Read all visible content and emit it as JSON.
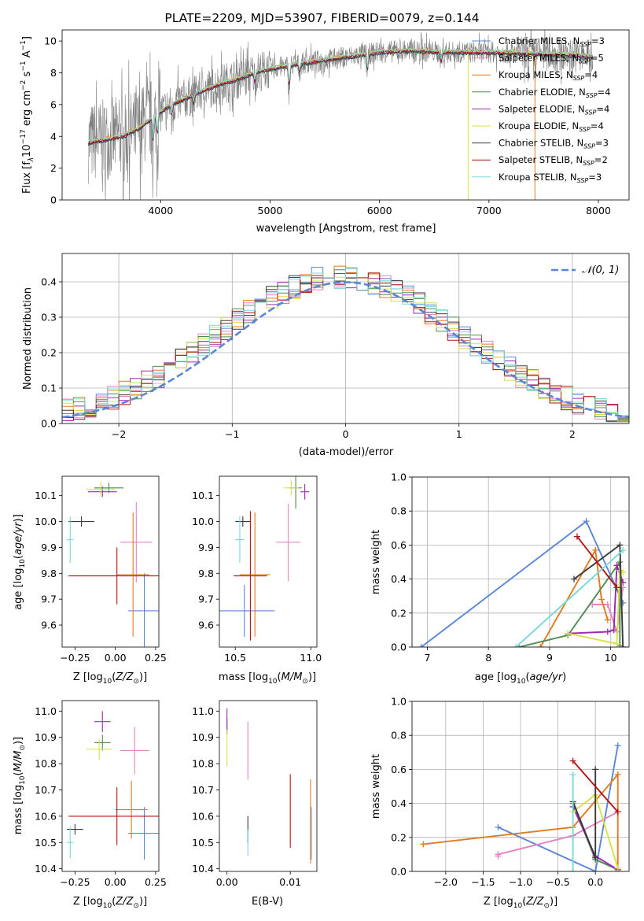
{
  "colors": {
    "Chabrier MILES": "#5b86d6",
    "Salpeter MILES": "#e584c3",
    "Kroupa MILES": "#e07b20",
    "Chabrier ELODIE": "#4f8a4f",
    "Salpeter ELODIE": "#9b2ab0",
    "Kroupa ELODIE": "#d8e04a",
    "Chabrier STELIB": "#3a3a3a",
    "Salpeter STELIB": "#b31515",
    "Kroupa STELIB": "#78d8d8",
    "data": "#808080",
    "normal": "#5b86d6"
  },
  "chart_data": [
    {
      "id": "spectrum",
      "type": "line",
      "title": "PLATE=2209, MJD=53907, FIBERID=0079, z=0.144",
      "xlabel": "wavelength [Angstrom, rest frame]",
      "ylabel": "Flux [f",
      "xlim": [
        3100,
        8280
      ],
      "ylim": [
        0,
        10.7
      ],
      "xticks": [
        "4000",
        "5000",
        "6000",
        "7000",
        "8000"
      ],
      "yticks": [
        "0",
        "2",
        "4",
        "6",
        "8",
        "10"
      ],
      "legend": [
        {
          "name": "Chabrier MILES",
          "nssp": "3"
        },
        {
          "name": "Salpeter MILES",
          "nssp": "5"
        },
        {
          "name": "Kroupa MILES",
          "nssp": "4"
        },
        {
          "name": "Chabrier ELODIE",
          "nssp": "4"
        },
        {
          "name": "Salpeter ELODIE",
          "nssp": "4"
        },
        {
          "name": "Kroupa ELODIE",
          "nssp": "4"
        },
        {
          "name": "Chabrier STELIB",
          "nssp": "3"
        },
        {
          "name": "Salpeter STELIB",
          "nssp": "2"
        },
        {
          "name": "Kroupa STELIB",
          "nssp": "3"
        }
      ],
      "legend_loc": "upper right",
      "continuum": [
        [
          3340,
          3.6
        ],
        [
          3500,
          3.8
        ],
        [
          3650,
          4.0
        ],
        [
          3800,
          4.5
        ],
        [
          3950,
          5.3
        ],
        [
          4100,
          6.0
        ],
        [
          4300,
          6.6
        ],
        [
          4500,
          7.2
        ],
        [
          4700,
          7.6
        ],
        [
          4900,
          8.1
        ],
        [
          5200,
          8.5
        ],
        [
          5500,
          8.8
        ],
        [
          5800,
          9.1
        ],
        [
          6000,
          9.3
        ],
        [
          6300,
          9.4
        ],
        [
          6600,
          9.3
        ],
        [
          7000,
          9.3
        ],
        [
          7400,
          9.2
        ],
        [
          7800,
          9.1
        ],
        [
          7950,
          9.0
        ]
      ]
    },
    {
      "id": "residual-hist",
      "type": "line",
      "xlabel": "(data-model)/error",
      "ylabel": "Normed distribution",
      "xlim": [
        -2.5,
        2.5
      ],
      "ylim": [
        0,
        0.48
      ],
      "grid": true,
      "xticks": [
        "−2",
        "−1",
        "0",
        "1",
        "2"
      ],
      "yticks": [
        "0.0",
        "0.1",
        "0.2",
        "0.3",
        "0.4"
      ],
      "legend": "𝒩(0, 1)",
      "legend_loc": "upper right",
      "bin_width": 0.1
    },
    {
      "id": "age-vs-z",
      "type": "scatter",
      "xlabel": "Z [log",
      "ylabel": "age  [log",
      "xlim": [
        -0.33,
        0.27
      ],
      "ylim": [
        9.515,
        10.175
      ],
      "xticks": [
        "−0.25",
        "0.00",
        "0.25"
      ],
      "yticks": [
        "9.6",
        "9.7",
        "9.8",
        "9.9",
        "10.0",
        "10.1"
      ],
      "points": [
        {
          "series": "Chabrier MILES",
          "x": 0.18,
          "xerr": 0.1,
          "y": 9.655,
          "yerr": 0.145
        },
        {
          "series": "Salpeter MILES",
          "x": 0.13,
          "xerr": 0.1,
          "y": 9.92,
          "yerr": 0.155
        },
        {
          "series": "Kroupa MILES",
          "x": 0.11,
          "xerr": 0.1,
          "y": 9.795,
          "yerr": 0.24
        },
        {
          "series": "Chabrier ELODIE",
          "x": -0.04,
          "xerr": 0.09,
          "y": 10.13,
          "yerr": 0.02
        },
        {
          "series": "Salpeter ELODIE",
          "x": -0.08,
          "xerr": 0.09,
          "y": 10.115,
          "yerr": 0.02
        },
        {
          "series": "Kroupa ELODIE",
          "x": -0.09,
          "xerr": 0.09,
          "y": 10.125,
          "yerr": 0.03
        },
        {
          "series": "Chabrier STELIB",
          "x": -0.21,
          "xerr": 0.08,
          "y": 10.0,
          "yerr": 0.02
        },
        {
          "series": "Salpeter STELIB",
          "x": 0.01,
          "xerr": 0.3,
          "y": 9.79,
          "yerr": 0.11
        },
        {
          "series": "Kroupa STELIB",
          "x": -0.28,
          "xerr": 0.02,
          "y": 9.93,
          "yerr": 0.09
        }
      ]
    },
    {
      "id": "age-vs-mass",
      "type": "scatter",
      "xlabel": "mass [log",
      "ylabel": "",
      "xlim": [
        10.395,
        11.04
      ],
      "ylim": [
        9.515,
        10.175
      ],
      "xticks": [
        "10.5",
        "11.0"
      ],
      "yticks": [
        "9.6",
        "9.7",
        "9.8",
        "9.9",
        "10.0",
        "10.1"
      ],
      "points": [
        {
          "series": "Chabrier MILES",
          "x": 10.56,
          "xerr": 0.2,
          "y": 9.655,
          "yerr": 0.1
        },
        {
          "series": "Salpeter MILES",
          "x": 10.85,
          "xerr": 0.08,
          "y": 9.92,
          "yerr": 0.15
        },
        {
          "series": "Kroupa MILES",
          "x": 10.63,
          "xerr": 0.1,
          "y": 9.795,
          "yerr": 0.24
        },
        {
          "series": "Chabrier ELODIE",
          "x": 10.9,
          "xerr": 0.04,
          "y": 10.13,
          "yerr": 0.08
        },
        {
          "series": "Salpeter ELODIE",
          "x": 10.96,
          "xerr": 0.03,
          "y": 10.115,
          "yerr": 0.03
        },
        {
          "series": "Kroupa ELODIE",
          "x": 10.87,
          "xerr": 0.05,
          "y": 10.13,
          "yerr": 0.03
        },
        {
          "series": "Chabrier STELIB",
          "x": 10.55,
          "xerr": 0.05,
          "y": 10.0,
          "yerr": 0.02
        },
        {
          "series": "Salpeter STELIB",
          "x": 10.6,
          "xerr": 0.11,
          "y": 9.79,
          "yerr": 0.25
        },
        {
          "series": "Kroupa STELIB",
          "x": 10.53,
          "xerr": 0.03,
          "y": 9.93,
          "yerr": 0.09
        }
      ]
    },
    {
      "id": "mass-weight-vs-age",
      "type": "line",
      "xlabel": "age  [log",
      "ylabel": "mass weight",
      "xlim": [
        6.75,
        10.3
      ],
      "ylim": [
        0,
        1
      ],
      "grid": true,
      "xticks": [
        "7",
        "8",
        "9",
        "10"
      ],
      "yticks": [
        "0.0",
        "0.2",
        "0.4",
        "0.6",
        "0.8",
        "1.0"
      ],
      "series": [
        {
          "name": "Chabrier MILES",
          "points": [
            [
              6.9,
              0.0
            ],
            [
              9.6,
              0.74
            ],
            [
              10.2,
              0.26
            ]
          ]
        },
        {
          "name": "Salpeter MILES",
          "points": [
            [
              9.7,
              0.25
            ],
            [
              9.95,
              0.25
            ],
            [
              10.1,
              0.09
            ],
            [
              10.2,
              0.35
            ]
          ]
        },
        {
          "name": "Kroupa MILES",
          "points": [
            [
              8.85,
              0.0
            ],
            [
              9.75,
              0.57
            ],
            [
              9.85,
              0.28
            ],
            [
              9.95,
              0.16
            ]
          ]
        },
        {
          "name": "Chabrier ELODIE",
          "points": [
            [
              8.5,
              0.0
            ],
            [
              9.3,
              0.07
            ],
            [
              10.15,
              0.5
            ],
            [
              10.15,
              0.01
            ]
          ]
        },
        {
          "name": "Salpeter ELODIE",
          "points": [
            [
              9.3,
              0.08
            ],
            [
              9.95,
              0.09
            ],
            [
              10.05,
              0.1
            ],
            [
              10.1,
              0.48
            ],
            [
              10.2,
              0.38
            ]
          ]
        },
        {
          "name": "Kroupa ELODIE",
          "points": [
            [
              9.3,
              0.08
            ],
            [
              10.1,
              0.02
            ],
            [
              10.15,
              0.45
            ],
            [
              10.2,
              0.44
            ]
          ]
        },
        {
          "name": "Chabrier STELIB",
          "points": [
            [
              9.4,
              0.4
            ],
            [
              10.15,
              0.6
            ],
            [
              10.2,
              0.0
            ]
          ]
        },
        {
          "name": "Salpeter STELIB",
          "points": [
            [
              9.45,
              0.65
            ],
            [
              10.1,
              0.35
            ]
          ]
        },
        {
          "name": "Kroupa STELIB",
          "points": [
            [
              8.45,
              0.0
            ],
            [
              10.2,
              0.57
            ]
          ]
        }
      ]
    },
    {
      "id": "mass-vs-z",
      "type": "scatter",
      "xlabel": "Z [log",
      "ylabel": "mass [log",
      "xlim": [
        -0.33,
        0.27
      ],
      "ylim": [
        10.39,
        11.04
      ],
      "xticks": [
        "−0.25",
        "0.00",
        "0.25"
      ],
      "yticks": [
        "10.4",
        "10.5",
        "10.6",
        "10.7",
        "10.8",
        "10.9",
        "11.0"
      ],
      "points": [
        {
          "series": "Chabrier MILES",
          "x": 0.18,
          "xerr": 0.1,
          "y": 10.535,
          "yerr": 0.1
        },
        {
          "series": "Salpeter MILES",
          "x": 0.12,
          "xerr": 0.09,
          "y": 10.85,
          "yerr": 0.09
        },
        {
          "series": "Kroupa MILES",
          "x": 0.1,
          "xerr": 0.1,
          "y": 10.625,
          "yerr": 0.11
        },
        {
          "series": "Chabrier ELODIE",
          "x": -0.08,
          "xerr": 0.05,
          "y": 10.88,
          "yerr": 0.03
        },
        {
          "series": "Salpeter ELODIE",
          "x": -0.08,
          "xerr": 0.05,
          "y": 10.96,
          "yerr": 0.04
        },
        {
          "series": "Kroupa ELODIE",
          "x": -0.1,
          "xerr": 0.08,
          "y": 10.855,
          "yerr": 0.04
        },
        {
          "series": "Chabrier STELIB",
          "x": -0.25,
          "xerr": 0.05,
          "y": 10.55,
          "yerr": 0.02
        },
        {
          "series": "Salpeter STELIB",
          "x": 0.01,
          "xerr": 0.3,
          "y": 10.6,
          "yerr": 0.11
        },
        {
          "series": "Kroupa STELIB",
          "x": -0.28,
          "xerr": 0.02,
          "y": 10.5,
          "yerr": 0.06
        }
      ]
    },
    {
      "id": "mass-vs-ebv",
      "type": "scatter",
      "xlabel": "E(B-V)",
      "ylabel": "",
      "xlim": [
        -0.0012,
        0.0142
      ],
      "ylim": [
        10.39,
        11.04
      ],
      "xticks": [
        "0.00",
        "0.01"
      ],
      "yticks": [
        "10.4",
        "10.5",
        "10.6",
        "10.7",
        "10.8",
        "10.9",
        "11.0"
      ],
      "points": [
        {
          "series": "Chabrier MILES",
          "x": 0.0133,
          "y": 10.535,
          "yerr": 0.1
        },
        {
          "series": "Salpeter MILES",
          "x": 0.0033,
          "y": 10.85,
          "yerr": 0.11
        },
        {
          "series": "Kroupa MILES",
          "x": 0.0132,
          "y": 10.58,
          "yerr": 0.16
        },
        {
          "series": "Chabrier ELODIE",
          "x": 0.0,
          "y": 10.945,
          "yerr": 0.03
        },
        {
          "series": "Salpeter ELODIE",
          "x": 0.0,
          "y": 10.96,
          "yerr": 0.05
        },
        {
          "series": "Kroupa ELODIE",
          "x": 0.0,
          "y": 10.86,
          "yerr": 0.07
        },
        {
          "series": "Chabrier STELIB",
          "x": 0.0033,
          "y": 10.55,
          "yerr": 0.05
        },
        {
          "series": "Salpeter STELIB",
          "x": 0.01,
          "y": 10.62,
          "yerr": 0.14
        },
        {
          "series": "Kroupa STELIB",
          "x": 0.0033,
          "y": 10.5,
          "yerr": 0.05
        }
      ]
    },
    {
      "id": "mass-weight-vs-z",
      "type": "line",
      "xlabel": "Z [log",
      "ylabel": "mass weight",
      "xlim": [
        -2.45,
        0.45
      ],
      "ylim": [
        0,
        1
      ],
      "grid": true,
      "xticks": [
        "−2.0",
        "−1.5",
        "−1.0",
        "−0.5",
        "0.0"
      ],
      "yticks": [
        "0.0",
        "0.2",
        "0.4",
        "0.6",
        "0.8",
        "1.0"
      ],
      "series": [
        {
          "name": "Chabrier MILES",
          "points": [
            [
              -1.3,
              0.26
            ],
            [
              0.0,
              0.0
            ],
            [
              0.3,
              0.74
            ]
          ]
        },
        {
          "name": "Salpeter MILES",
          "points": [
            [
              -1.3,
              0.09
            ],
            [
              -1.3,
              0.1
            ],
            [
              -0.3,
              0.21
            ],
            [
              0.3,
              0.35
            ]
          ]
        },
        {
          "name": "Kroupa MILES",
          "points": [
            [
              -2.3,
              0.16
            ],
            [
              -0.3,
              0.26
            ],
            [
              0.3,
              0.57
            ],
            [
              0.3,
              0.0
            ]
          ]
        },
        {
          "name": "Chabrier ELODIE",
          "points": [
            [
              -0.3,
              0.4
            ],
            [
              0.0,
              0.07
            ],
            [
              0.3,
              0.01
            ]
          ]
        },
        {
          "name": "Salpeter ELODIE",
          "points": [
            [
              -0.3,
              0.38
            ],
            [
              0.0,
              0.09
            ],
            [
              0.3,
              0.01
            ]
          ]
        },
        {
          "name": "Kroupa ELODIE",
          "points": [
            [
              -0.3,
              0.35
            ],
            [
              0.0,
              0.45
            ],
            [
              0.3,
              0.02
            ]
          ]
        },
        {
          "name": "Chabrier STELIB",
          "points": [
            [
              -0.3,
              0.41
            ],
            [
              0.0,
              0.08
            ],
            [
              0.0,
              0.6
            ]
          ]
        },
        {
          "name": "Salpeter STELIB",
          "points": [
            [
              -0.3,
              0.65
            ],
            [
              0.3,
              0.35
            ]
          ]
        },
        {
          "name": "Kroupa STELIB",
          "points": [
            [
              -0.3,
              0.57
            ],
            [
              -0.3,
              0.0
            ]
          ]
        }
      ]
    }
  ]
}
